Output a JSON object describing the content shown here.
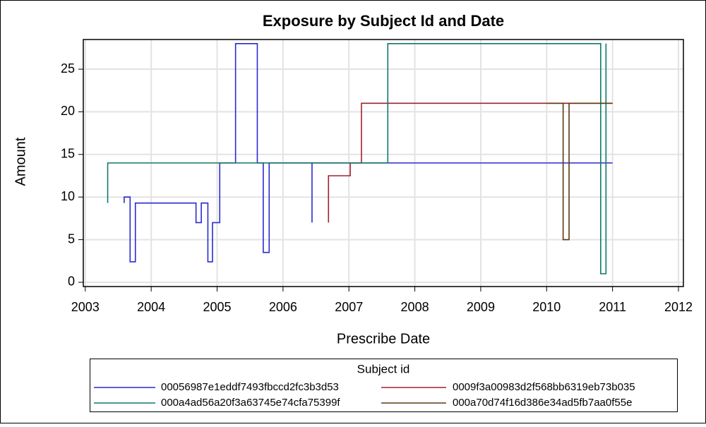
{
  "chart_data": {
    "type": "line",
    "title": "Exposure by Subject Id and Date",
    "xlabel": "Prescribe Date",
    "ylabel": "Amount",
    "legend_title": "Subject id",
    "xlim": [
      2002.97,
      2012.075
    ],
    "ylim": [
      -0.5,
      28.48
    ],
    "xticks": [
      2003,
      2004,
      2005,
      2006,
      2007,
      2008,
      2009,
      2010,
      2011,
      2012
    ],
    "yticks": [
      0,
      5,
      10,
      15,
      20,
      25
    ],
    "grid": true,
    "legend_position": "bottom",
    "series": [
      {
        "name": "00056987e1eddf7493fbccd2fc3b3d53",
        "color": "#2a2ad0",
        "x": [
          2003.59,
          2003.59,
          2003.68,
          2003.68,
          2003.76,
          2003.76,
          2004.68,
          2004.68,
          2004.76,
          2004.76,
          2004.86,
          2004.86,
          2004.93,
          2004.93,
          2005.04,
          2005.04,
          2005.28,
          2005.28,
          2005.61,
          2005.61,
          2005.7,
          2005.7,
          2005.79,
          2005.79,
          2006.44,
          2006.44,
          2006.44,
          2011.0
        ],
        "values": [
          9.3,
          10,
          10,
          2.4,
          2.4,
          9.3,
          9.3,
          7,
          7,
          9.3,
          9.3,
          2.4,
          2.4,
          7,
          7,
          14,
          14,
          28,
          28,
          14,
          14,
          3.5,
          3.5,
          14,
          14,
          7,
          14,
          14
        ]
      },
      {
        "name": "0009f3a00983d2f568bb6319eb73b035",
        "color": "#a0202e",
        "x": [
          2006.69,
          2006.69,
          2007.02,
          2007.02,
          2007.19,
          2007.19,
          2011.0
        ],
        "values": [
          7,
          12.5,
          12.5,
          14,
          14,
          21,
          21
        ]
      },
      {
        "name": "000a4ad56a20f3a63745e74cfa75399f",
        "color": "#10786a",
        "x": [
          2003.34,
          2003.34,
          2007.59,
          2007.59,
          2010.82,
          2010.82,
          2010.9,
          2010.9
        ],
        "values": [
          9.3,
          14,
          14,
          28,
          28,
          1,
          1,
          28
        ]
      },
      {
        "name": "000a70d74f16d386e34ad5fb7aa0f55e",
        "color": "#5a3a12",
        "x": [
          2010.01,
          2010.25,
          2010.25,
          2010.34,
          2010.34,
          2011.0
        ],
        "values": [
          21,
          21,
          5,
          5,
          21,
          21
        ]
      }
    ]
  }
}
